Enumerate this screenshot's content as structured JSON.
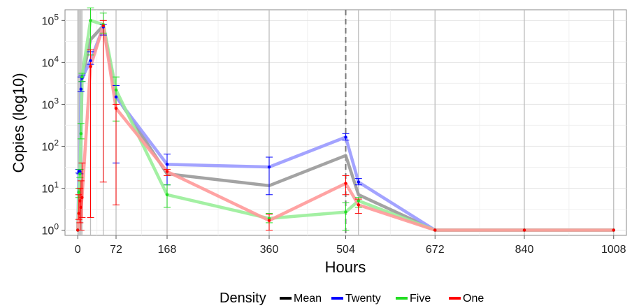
{
  "chart_data": {
    "type": "line",
    "xlabel": "Hours",
    "ylabel": "Copies (log10)",
    "y_scale": "log10",
    "xlim": [
      -24,
      1032
    ],
    "ylim": [
      0.75,
      180000
    ],
    "x_ticks": [
      0,
      72,
      168,
      360,
      504,
      672,
      840,
      1008
    ],
    "x_tick_labels": [
      "0",
      "72",
      "168",
      "360",
      "504",
      "672",
      "840",
      "1008"
    ],
    "y_ticks": [
      1,
      10,
      100,
      1000,
      10000,
      100000
    ],
    "y_tick_labels": [
      {
        "base": "10",
        "exp": "0"
      },
      {
        "base": "10",
        "exp": "1"
      },
      {
        "base": "10",
        "exp": "2"
      },
      {
        "base": "10",
        "exp": "3"
      },
      {
        "base": "10",
        "exp": "4"
      },
      {
        "base": "10",
        "exp": "5"
      }
    ],
    "sampling_times": [
      0,
      2,
      4,
      6,
      8,
      24,
      48,
      72,
      168,
      360,
      504,
      528,
      672,
      840,
      1008
    ],
    "dashed_reference_x": 504,
    "grid": true,
    "background": "#ffffff",
    "legend": {
      "title": "Density",
      "position": "bottom",
      "entries": [
        {
          "label": "Mean",
          "color": "#000000"
        },
        {
          "label": "Twenty",
          "color": "#0000ff"
        },
        {
          "label": "Five",
          "color": "#22dd22"
        },
        {
          "label": "One",
          "color": "#ff0000"
        }
      ]
    },
    "series": [
      {
        "name": "Mean",
        "color": "#999999",
        "x": [
          0,
          2,
          4,
          6,
          8,
          24,
          48,
          72,
          168,
          360,
          504,
          528,
          672,
          840,
          1008
        ],
        "y": [
          1,
          5,
          15,
          120,
          4000,
          35000,
          75000,
          1600,
          22,
          11.5,
          60,
          7,
          1,
          1,
          1
        ]
      },
      {
        "name": "Twenty",
        "color": "#9999ff",
        "x": [
          0,
          2,
          4,
          6,
          8,
          24,
          48,
          72,
          168,
          360,
          504,
          528,
          672,
          840,
          1008
        ],
        "y": [
          1,
          25,
          25,
          2300,
          4200,
          11000,
          70000,
          1500,
          37,
          32,
          165,
          14,
          1,
          1,
          1
        ],
        "err_low": [
          1,
          23,
          22,
          2000,
          3500,
          9000,
          45000,
          40,
          12,
          7,
          140,
          12,
          1,
          1,
          1
        ],
        "err_high": [
          1,
          28,
          28,
          4500,
          5000,
          18000,
          80000,
          2800,
          65,
          55,
          200,
          17,
          1,
          1,
          1
        ]
      },
      {
        "name": "Five",
        "color": "#99ee99",
        "x": [
          0,
          2,
          4,
          6,
          8,
          24,
          48,
          72,
          168,
          360,
          504,
          528,
          672,
          840,
          1008
        ],
        "y": [
          1,
          8,
          22,
          200,
          4500,
          100000,
          80000,
          2200,
          7,
          1.9,
          2.7,
          5,
          1,
          1,
          1
        ],
        "err_low": [
          1,
          6,
          18,
          150,
          3500,
          15000,
          50000,
          400,
          3.5,
          1.5,
          1,
          3.5,
          1,
          1,
          1
        ],
        "err_high": [
          1,
          10,
          28,
          350,
          5500,
          200000,
          150000,
          4500,
          12,
          2.5,
          4.5,
          6,
          1,
          1,
          1
        ]
      },
      {
        "name": "One",
        "color": "#ff9999",
        "x": [
          0,
          2,
          4,
          6,
          8,
          24,
          48,
          72,
          168,
          360,
          504,
          528,
          672,
          840,
          1008
        ],
        "y": [
          1,
          2.5,
          5,
          3.5,
          6,
          8000,
          75000,
          800,
          25,
          1.7,
          13,
          4,
          1,
          1,
          1
        ],
        "err_low": [
          1,
          1.8,
          1.5,
          1,
          2,
          2,
          14,
          4,
          20,
          1,
          7,
          2.5,
          1,
          1,
          1
        ],
        "err_high": [
          1,
          7,
          10,
          15,
          40,
          20000,
          100000,
          1000,
          28,
          2.4,
          20,
          5.5,
          1,
          1,
          1
        ]
      }
    ]
  }
}
